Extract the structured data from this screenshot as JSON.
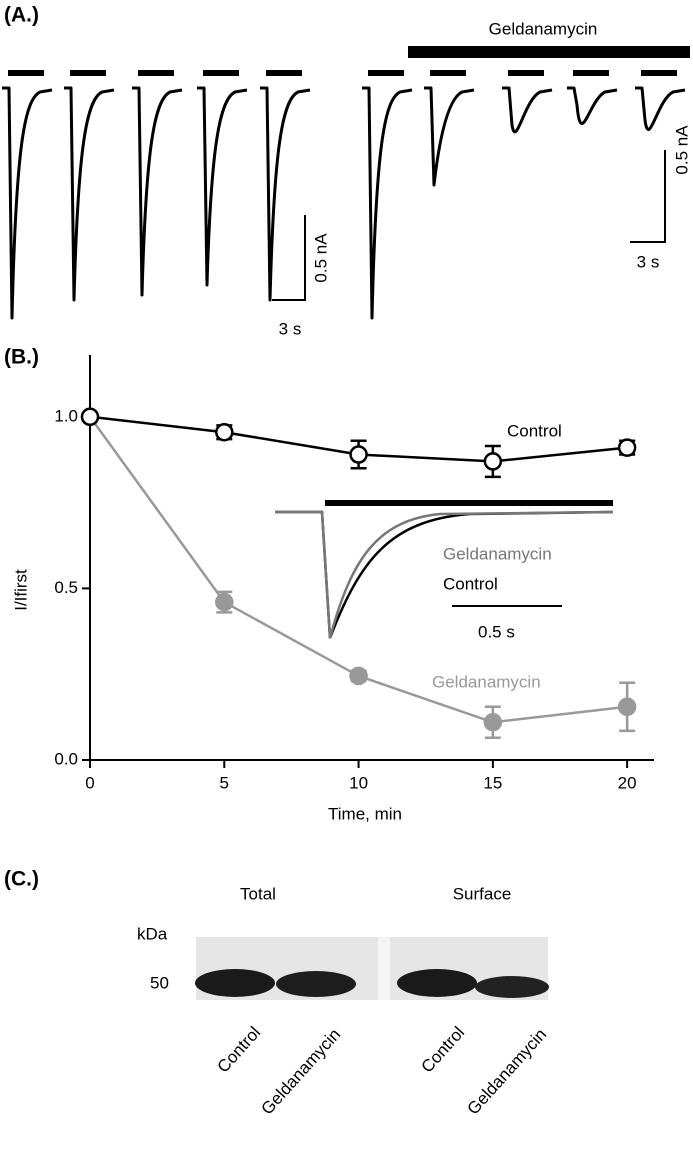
{
  "panel_a": {
    "label": "(A.)",
    "drug": "Geldanamycin",
    "scale_current_left": "0.5 nA",
    "scale_time_left": "3 s",
    "scale_current_right": "0.5 nA",
    "scale_time_right": "3 s"
  },
  "chart_data": {
    "type": "line",
    "panel_label": "(B.)",
    "x_label": "Time, min",
    "y_label": "I/Ifirst",
    "x": [
      0,
      5,
      10,
      15,
      20
    ],
    "series": [
      {
        "name": "Control",
        "color": "#000000",
        "marker_fill": "#ffffff",
        "values": [
          1.0,
          0.955,
          0.89,
          0.87,
          0.91
        ],
        "errors": [
          0,
          0.02,
          0.04,
          0.045,
          0.02
        ]
      },
      {
        "name": "Geldanamycin",
        "color": "#999999",
        "marker_fill": "#999999",
        "values": [
          1.0,
          0.46,
          0.245,
          0.11,
          0.155
        ],
        "errors": [
          0,
          0.03,
          0.015,
          0.045,
          0.07
        ]
      }
    ],
    "xlim": [
      0,
      21
    ],
    "ylim": [
      0,
      1.18
    ],
    "xticks": [
      0,
      5,
      10,
      15,
      20
    ],
    "yticks": [
      {
        "value": 0,
        "label": "0.0"
      },
      {
        "value": 0.5,
        "label": "0.5"
      },
      {
        "value": 1,
        "label": "1.0"
      }
    ],
    "inset": {
      "drug": "Geldanamycin",
      "control": "Control",
      "scale": "0.5 s"
    }
  },
  "panel_c": {
    "label": "(C.)",
    "group_total": "Total",
    "group_surface": "Surface",
    "unit": "kDa",
    "marker": "50",
    "lanes": [
      "Control",
      "Geldanamycin",
      "Control",
      "Geldanamycin"
    ]
  }
}
